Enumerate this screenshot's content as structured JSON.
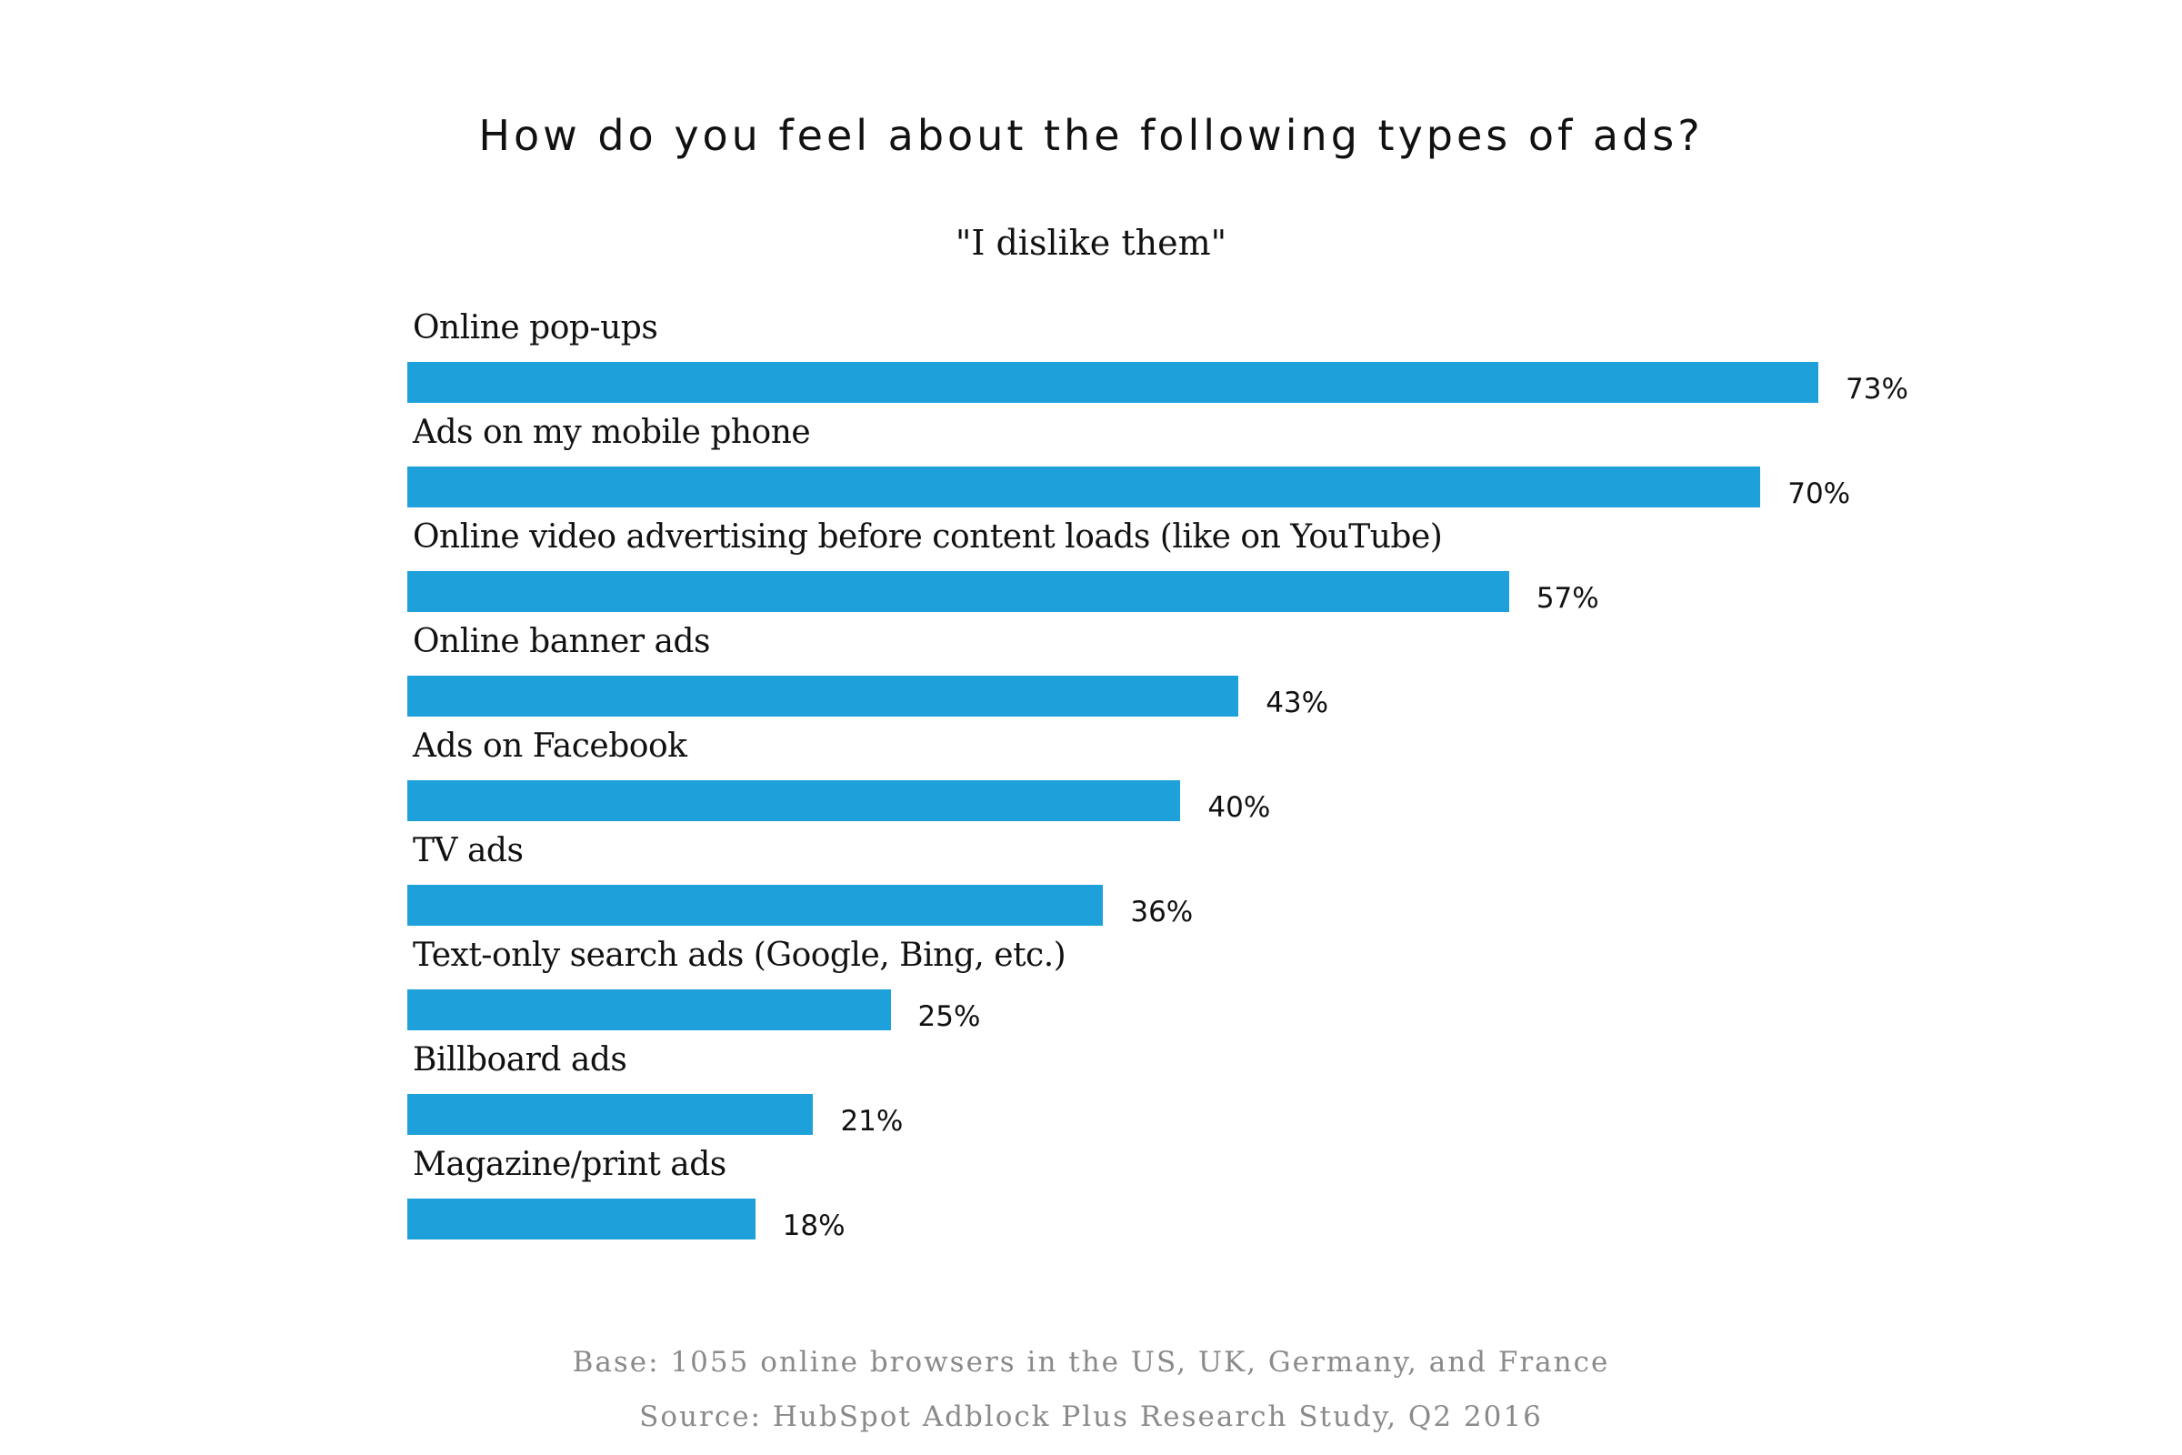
{
  "chart_data": {
    "type": "bar",
    "orientation": "horizontal",
    "title": "How do you feel about the following types of ads?",
    "subtitle": "\"I dislike them\"",
    "categories": [
      "Online pop-ups",
      "Ads on my mobile phone",
      "Online video advertising before content loads (like on YouTube)",
      "Online banner ads",
      "Ads on Facebook",
      "TV ads",
      "Text-only search ads (Google, Bing, etc.)",
      "Billboard ads",
      "Magazine/print ads"
    ],
    "values": [
      73,
      70,
      57,
      43,
      40,
      36,
      25,
      21,
      18
    ],
    "value_labels": [
      "73%",
      "70%",
      "57%",
      "43%",
      "40%",
      "36%",
      "25%",
      "21%",
      "18%"
    ],
    "unit": "%",
    "bar_color": "#1ea1da",
    "grid": false,
    "xlabel": "",
    "ylabel": ""
  },
  "footer": {
    "base": "Base: 1055 online browsers in the US, UK, Germany, and France",
    "source": "Source: HubSpot Adblock Plus Research Study, Q2 2016"
  }
}
